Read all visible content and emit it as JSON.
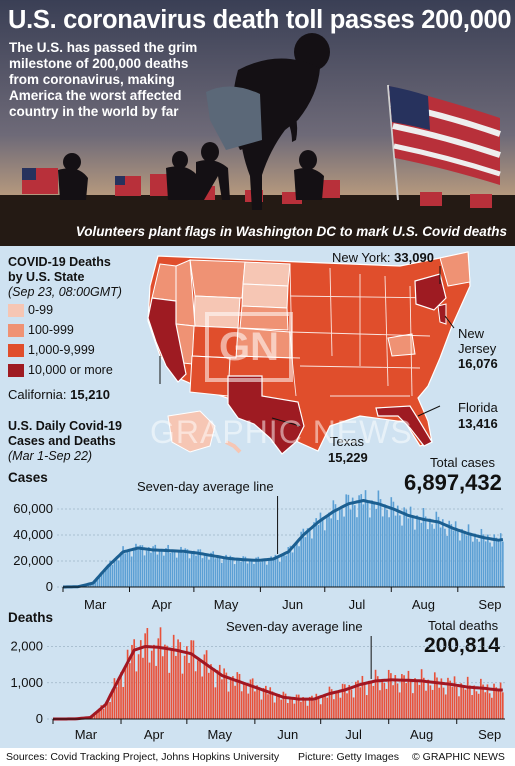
{
  "header": {
    "title": "U.S. coronavirus death toll passes 200,000",
    "intro": "The U.S. has passed the grim milestone of 200,000 deaths from coronavirus, making America the worst affected country in the world by far",
    "photo_caption": "Volunteers plant flags in Washington DC to mark U.S. Covid deaths"
  },
  "map": {
    "title_line1": "COVID-19 Deaths",
    "title_line2": "by U.S. State",
    "subtitle": "(Sep 23, 08:00GMT)",
    "legend": [
      {
        "label": "0-99",
        "color": "#f6c6b4"
      },
      {
        "label": "100-999",
        "color": "#ef9274"
      },
      {
        "label": "1,000-9,999",
        "color": "#e04e2c"
      },
      {
        "label": "10,000 or more",
        "color": "#9e1b22"
      }
    ],
    "callouts": {
      "new_york_name": "New York:",
      "new_york_value": "33,090",
      "new_jersey_name_1": "New",
      "new_jersey_name_2": "Jersey",
      "new_jersey_value": "16,076",
      "florida_name": "Florida",
      "florida_value": "13,416",
      "texas_name": "Texas",
      "texas_value": "15,229",
      "california_name": "California:",
      "california_value": "15,210"
    }
  },
  "daily": {
    "title_line1": "U.S. Daily Covid-19",
    "title_line2": "Cases and Deaths",
    "subtitle": "(Mar 1-Sep 22)"
  },
  "watermark": {
    "logo": "GN",
    "text": "GRAPHIC NEWS"
  },
  "chart_data": [
    {
      "type": "bar",
      "title": "Cases",
      "total_label": "Total cases",
      "total_value": "6,897,432",
      "annotation": "Seven-day average line",
      "x_range": [
        "Mar 1",
        "Sep 22"
      ],
      "month_labels": [
        "Mar",
        "Apr",
        "May",
        "Jun",
        "Jul",
        "Aug",
        "Sep"
      ],
      "yticks": [
        0,
        20000,
        40000,
        60000
      ],
      "ytick_labels": [
        "0",
        "20,000",
        "40,000",
        "60,000"
      ],
      "ylim": [
        0,
        70000
      ],
      "bar_color": "#5b9fd4",
      "line_color": "#1c5f91",
      "anchors_day_value": [
        [
          0,
          0
        ],
        [
          7,
          200
        ],
        [
          14,
          3000
        ],
        [
          21,
          16000
        ],
        [
          28,
          27000
        ],
        [
          35,
          30000
        ],
        [
          42,
          28500
        ],
        [
          49,
          28000
        ],
        [
          56,
          27500
        ],
        [
          63,
          26000
        ],
        [
          70,
          24000
        ],
        [
          77,
          22000
        ],
        [
          84,
          21000
        ],
        [
          91,
          20500
        ],
        [
          98,
          21500
        ],
        [
          105,
          27000
        ],
        [
          112,
          40000
        ],
        [
          119,
          50000
        ],
        [
          126,
          58000
        ],
        [
          133,
          64000
        ],
        [
          140,
          66500
        ],
        [
          147,
          64000
        ],
        [
          154,
          60000
        ],
        [
          161,
          55000
        ],
        [
          168,
          52000
        ],
        [
          175,
          50000
        ],
        [
          182,
          45000
        ],
        [
          189,
          41000
        ],
        [
          196,
          38000
        ],
        [
          203,
          36000
        ],
        [
          210,
          38000
        ],
        [
          216,
          39000
        ],
        [
          221,
          38500
        ]
      ],
      "series": [
        {
          "name": "Seven-day average line"
        }
      ]
    },
    {
      "type": "bar",
      "title": "Deaths",
      "total_label": "Total deaths",
      "total_value": "200,814",
      "annotation": "Seven-day average line",
      "x_range": [
        "Mar 1",
        "Sep 22"
      ],
      "month_labels": [
        "Mar",
        "Apr",
        "May",
        "Jun",
        "Jul",
        "Aug",
        "Sep"
      ],
      "yticks": [
        0,
        1000,
        2000
      ],
      "ytick_labels": [
        "0",
        "1,000",
        "2,000"
      ],
      "ylim": [
        0,
        2400
      ],
      "bar_color": "#e8513a",
      "line_color": "#a11722",
      "anchors_day_value": [
        [
          0,
          0
        ],
        [
          10,
          2
        ],
        [
          17,
          40
        ],
        [
          24,
          400
        ],
        [
          30,
          1100
        ],
        [
          37,
          1900
        ],
        [
          42,
          2000
        ],
        [
          48,
          1980
        ],
        [
          56,
          1900
        ],
        [
          63,
          1800
        ],
        [
          70,
          1500
        ],
        [
          77,
          1200
        ],
        [
          84,
          1050
        ],
        [
          91,
          900
        ],
        [
          98,
          750
        ],
        [
          105,
          600
        ],
        [
          112,
          550
        ],
        [
          119,
          550
        ],
        [
          126,
          700
        ],
        [
          133,
          800
        ],
        [
          140,
          950
        ],
        [
          147,
          1050
        ],
        [
          154,
          1080
        ],
        [
          161,
          1070
        ],
        [
          168,
          1050
        ],
        [
          175,
          1000
        ],
        [
          182,
          950
        ],
        [
          189,
          880
        ],
        [
          196,
          850
        ],
        [
          203,
          800
        ],
        [
          210,
          800
        ],
        [
          216,
          750
        ],
        [
          221,
          720
        ]
      ],
      "series": [
        {
          "name": "Seven-day average line"
        }
      ]
    }
  ],
  "footer": {
    "sources": "Sources: Covid Tracking Project, Johns Hopkins University",
    "picture": "Picture: Getty Images",
    "copyright": "© GRAPHIC NEWS"
  }
}
